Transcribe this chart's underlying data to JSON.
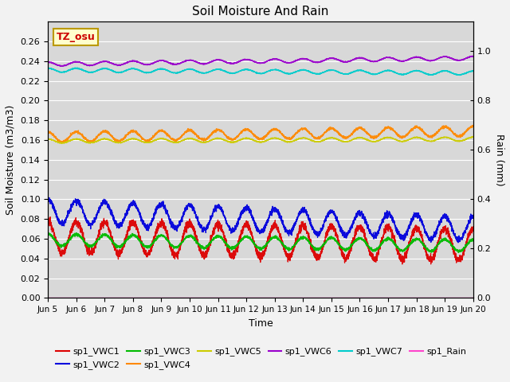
{
  "title": "Soil Moisture And Rain",
  "xlabel": "Time",
  "ylabel_left": "Soil Moisture (m3/m3)",
  "ylabel_right": "Rain (mm)",
  "xlim_days": [
    0,
    15
  ],
  "ylim_left": [
    0.0,
    0.28
  ],
  "ylim_right": [
    0.0,
    1.12
  ],
  "annotation_text": "TZ_osu",
  "annotation_color": "#cc0000",
  "annotation_bg": "#ffffcc",
  "annotation_border": "#bb9900",
  "series": {
    "sp1_VWC1": {
      "color": "#dd0000",
      "base": 0.062,
      "amplitude": 0.016,
      "trend": -0.008,
      "period_days": 1.0,
      "phase": 1.57
    },
    "sp1_VWC2": {
      "color": "#0000dd",
      "base": 0.088,
      "amplitude": 0.012,
      "trend": -0.018,
      "period_days": 1.0,
      "phase": 1.57
    },
    "sp1_VWC3": {
      "color": "#00bb00",
      "base": 0.059,
      "amplitude": 0.006,
      "trend": -0.006,
      "period_days": 1.0,
      "phase": 1.57
    },
    "sp1_VWC4": {
      "color": "#ff8800",
      "base": 0.163,
      "amplitude": 0.005,
      "trend": 0.006,
      "period_days": 1.0,
      "phase": 1.57
    },
    "sp1_VWC5": {
      "color": "#cccc00",
      "base": 0.159,
      "amplitude": 0.002,
      "trend": 0.002,
      "period_days": 1.0,
      "phase": 1.57
    },
    "sp1_VWC6": {
      "color": "#9900cc",
      "base": 0.237,
      "amplitude": 0.002,
      "trend": 0.006,
      "period_days": 1.0,
      "phase": 1.57
    },
    "sp1_VWC7": {
      "color": "#00cccc",
      "base": 0.231,
      "amplitude": 0.002,
      "trend": -0.003,
      "period_days": 1.0,
      "phase": 1.57
    },
    "sp1_Rain": {
      "color": "#ff44cc",
      "base": 0.0,
      "amplitude": 0.0,
      "trend": 0.0,
      "period_days": 1.0,
      "phase": 0.0
    }
  },
  "xtick_labels": [
    "Jun 5",
    "Jun 6",
    "Jun 7",
    "Jun 8",
    "Jun 9",
    "Jun 10",
    "Jun 11",
    "Jun 12",
    "Jun 13",
    "Jun 14",
    "Jun 15",
    "Jun 16",
    "Jun 17",
    "Jun 18",
    "Jun 19",
    "Jun 20"
  ],
  "xtick_positions": [
    0,
    1,
    2,
    3,
    4,
    5,
    6,
    7,
    8,
    9,
    10,
    11,
    12,
    13,
    14,
    15
  ],
  "yticks_left": [
    0.0,
    0.02,
    0.04,
    0.06,
    0.08,
    0.1,
    0.12,
    0.14,
    0.16,
    0.18,
    0.2,
    0.22,
    0.24,
    0.26
  ],
  "yticks_right": [
    0.0,
    0.2,
    0.4,
    0.6,
    0.8,
    1.0
  ],
  "plot_bg": "#d8d8d8",
  "fig_bg": "#f2f2f2",
  "grid_color": "#ffffff",
  "legend_order": [
    "sp1_VWC1",
    "sp1_VWC2",
    "sp1_VWC3",
    "sp1_VWC4",
    "sp1_VWC5",
    "sp1_VWC6",
    "sp1_VWC7",
    "sp1_Rain"
  ]
}
